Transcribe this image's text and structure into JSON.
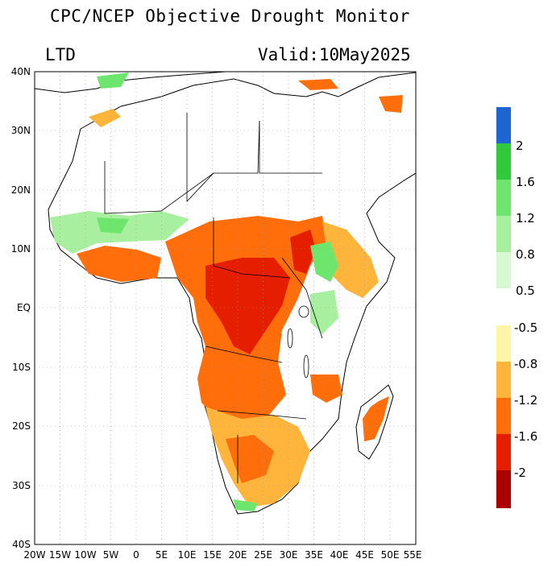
{
  "header": {
    "title": "CPC/NCEP Objective Drought Monitor",
    "index_label": "LTD",
    "valid_text": "Valid:10May2025"
  },
  "map": {
    "lat_labels": [
      "40N",
      "30N",
      "20N",
      "10N",
      "EQ",
      "10S",
      "20S",
      "30S",
      "40S"
    ],
    "lon_labels": [
      "20W",
      "15W",
      "10W",
      "5W",
      "0",
      "5E",
      "10E",
      "15E",
      "20E",
      "25E",
      "30E",
      "35E",
      "40E",
      "45E",
      "50E",
      "55E"
    ]
  },
  "colorbar_wet": {
    "bins": [
      {
        "color": "#1e64d2"
      },
      {
        "color": "#32c83c",
        "label": "2"
      },
      {
        "color": "#6ee66e",
        "label": "1.6"
      },
      {
        "color": "#a8f0a0",
        "label": "1.2"
      },
      {
        "color": "#d8f8d4",
        "label": "0.8"
      },
      {
        "color": "#f0fcee",
        "label": "0.5"
      }
    ]
  },
  "colorbar_dry": {
    "bins": [
      {
        "color": "#fff5a8",
        "label": "-0.5"
      },
      {
        "color": "#ffb43c",
        "label": "-0.8"
      },
      {
        "color": "#ff6e0a",
        "label": "-1.2"
      },
      {
        "color": "#e61e00",
        "label": "-1.6"
      },
      {
        "color": "#aa0000",
        "label": "-2"
      }
    ]
  },
  "colors": {
    "moderate": "#ffb43c",
    "severe": "#ff6e0a",
    "extreme": "#e61e00",
    "abnormal": "#fff5a8",
    "wet_light": "#a8f0a0",
    "wet_mid": "#6ee66e"
  }
}
